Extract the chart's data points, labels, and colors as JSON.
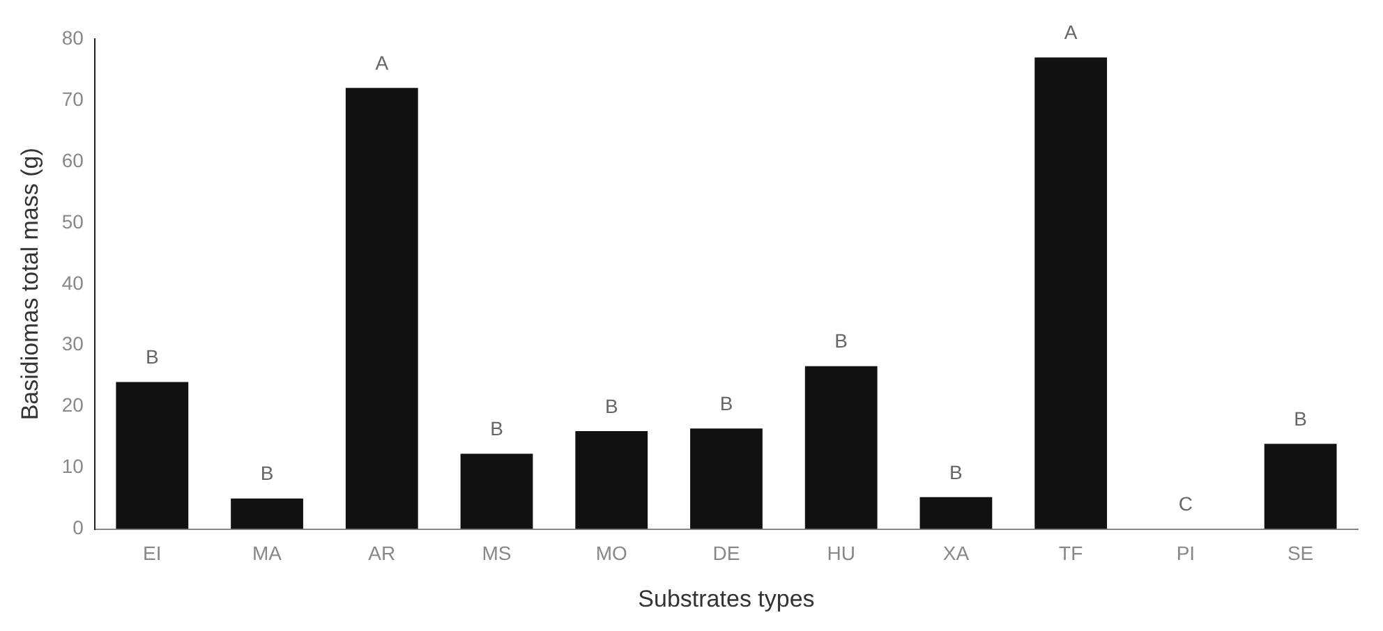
{
  "chart_data": {
    "type": "bar",
    "xlabel": "Substrates types",
    "ylabel": "Basidiomas total mass (g)",
    "categories": [
      "EI",
      "MA",
      "AR",
      "MS",
      "MO",
      "DE",
      "HU",
      "XA",
      "TF",
      "PI",
      "SE"
    ],
    "values": [
      24,
      5,
      72,
      12.3,
      16,
      16.4,
      26.6,
      5.2,
      77,
      0,
      13.9
    ],
    "color": "#111111",
    "ylim": [
      0,
      80
    ],
    "yticks": [
      0,
      10,
      20,
      30,
      40,
      50,
      60,
      70,
      80
    ],
    "grid": false,
    "legend": false,
    "annotations": [
      {
        "text": "B",
        "x": "EI",
        "y": 24
      },
      {
        "text": "B",
        "x": "MA",
        "y": 5
      },
      {
        "text": "A",
        "x": "AR",
        "y": 72
      },
      {
        "text": "B",
        "x": "MS",
        "y": 12.3
      },
      {
        "text": "B",
        "x": "MO",
        "y": 16
      },
      {
        "text": "B",
        "x": "DE",
        "y": 16.4
      },
      {
        "text": "B",
        "x": "HU",
        "y": 26.6
      },
      {
        "text": "B",
        "x": "XA",
        "y": 5.2
      },
      {
        "text": "A",
        "x": "TF",
        "y": 77
      },
      {
        "text": "C",
        "x": "PI",
        "y": 0
      },
      {
        "text": "B",
        "x": "SE",
        "y": 13.9
      }
    ]
  }
}
